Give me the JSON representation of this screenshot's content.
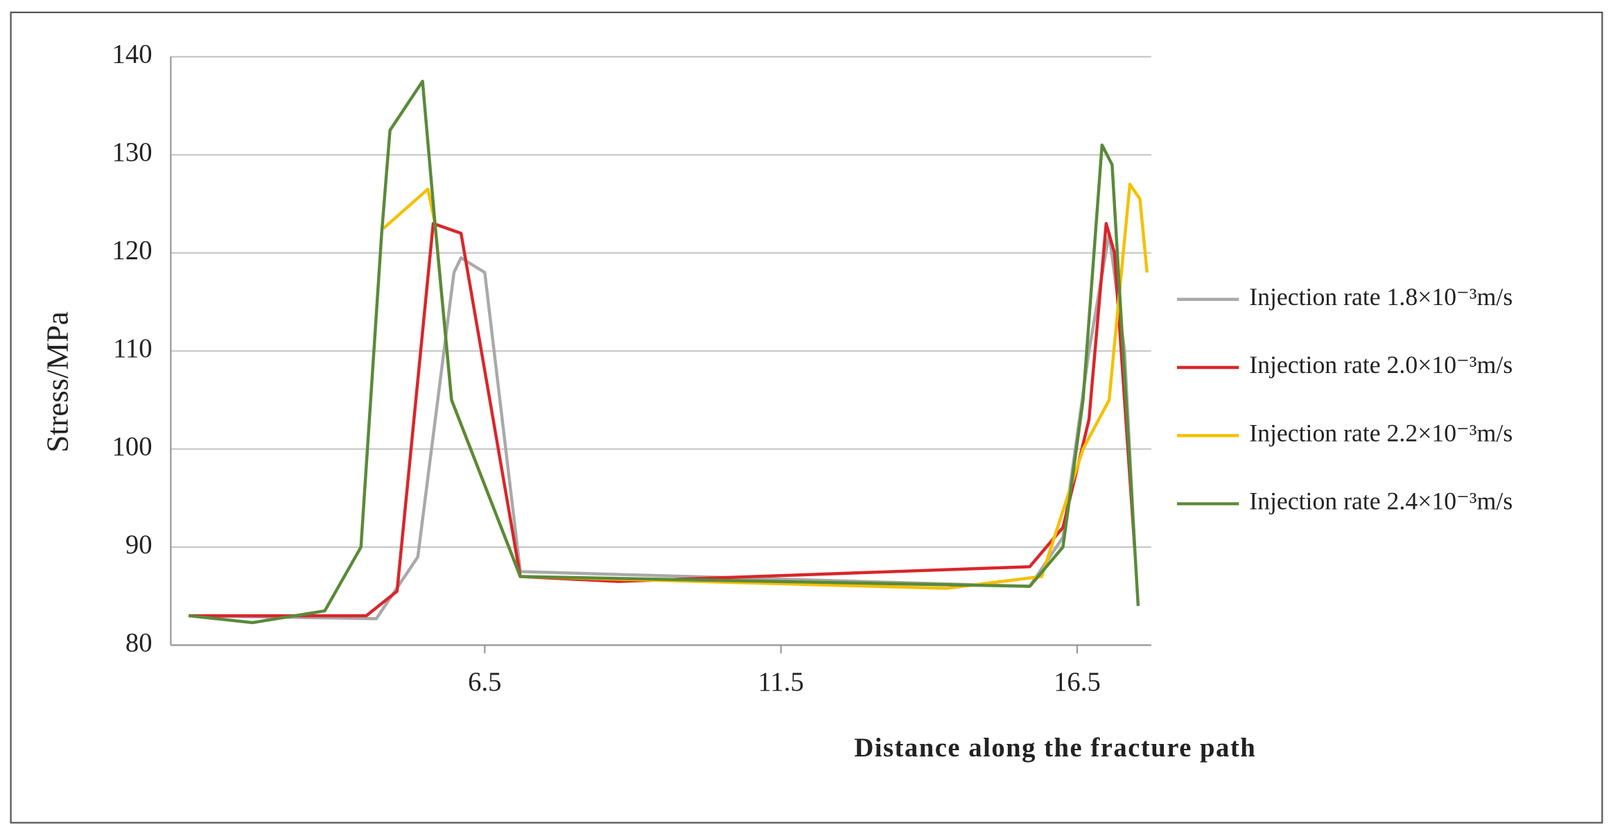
{
  "chart_data": {
    "type": "line",
    "y_label": "Stress/MPa",
    "x_label": "Distance along the fracture path",
    "xlim": [
      1.2,
      17.75
    ],
    "xticks": [
      6.5,
      11.5,
      16.5
    ],
    "ylim": [
      80,
      140
    ],
    "yticks": [
      80,
      90,
      100,
      110,
      120,
      130,
      140
    ],
    "grid": true,
    "legend": "right",
    "series": [
      {
        "name": "Injection rate 1.8×10⁻³m/s",
        "color": "#a9a9a9",
        "x": [
          1.5,
          4.67,
          5.37,
          5.98,
          6.1,
          6.5,
          7.1,
          15.7,
          16.26,
          16.7,
          17.04,
          17.3,
          17.47
        ],
        "values": [
          83,
          82.7,
          89,
          118,
          119.5,
          118,
          87.5,
          86,
          91,
          110,
          122,
          110,
          90
        ]
      },
      {
        "name": "Injection rate 2.0×10⁻³m/s",
        "color": "#d9262a",
        "x": [
          1.5,
          4.5,
          5.02,
          5.63,
          6.1,
          7.1,
          8.75,
          15.7,
          16.26,
          16.7,
          16.99,
          17.13,
          17.47
        ],
        "values": [
          83,
          83,
          85.5,
          123,
          122,
          87,
          86.5,
          88,
          92,
          103,
          123,
          120,
          90
        ]
      },
      {
        "name": "Injection rate 2.2×10⁻³m/s",
        "color": "#f5c000",
        "x": [
          4.79,
          5.54,
          5.66,
          5.94,
          7.1,
          14.3,
          15.9,
          16.6,
          17.04,
          17.39,
          17.56,
          17.68
        ],
        "values": [
          122.5,
          126.5,
          123,
          105,
          87,
          85.8,
          87,
          100,
          105,
          127,
          125.5,
          118
        ]
      },
      {
        "name": "Injection rate 2.4×10⁻³m/s",
        "color": "#5a8a3a",
        "x": [
          1.5,
          2.58,
          3.8,
          4.41,
          4.76,
          4.9,
          5.45,
          5.66,
          5.94,
          7.1,
          15.7,
          16.26,
          16.6,
          16.92,
          17.09,
          17.53
        ],
        "values": [
          83,
          82.3,
          83.5,
          90,
          122,
          132.5,
          137.5,
          123,
          105,
          87,
          86,
          90,
          105,
          131,
          129,
          84
        ]
      }
    ]
  }
}
